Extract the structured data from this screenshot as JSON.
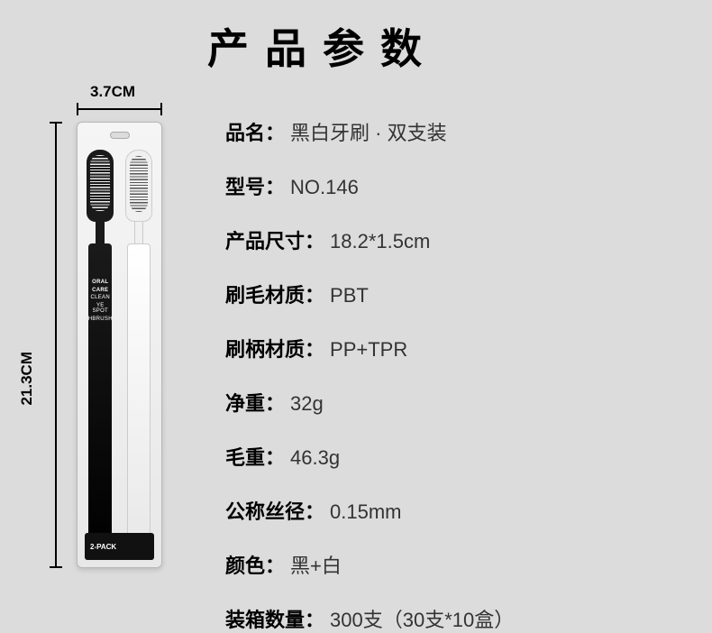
{
  "title": "产品参数",
  "dimensions": {
    "width_label": "3.7CM",
    "height_label": "21.3CM"
  },
  "package_text": {
    "line1": "ORAL",
    "line2": "CARE",
    "line3": "CLEAN",
    "line4": "YE SPOT",
    "line5": "HBRUSH",
    "footer": "2-PACK"
  },
  "specs": [
    {
      "label": "品名",
      "value": "黑白牙刷 · 双支装"
    },
    {
      "label": "型号",
      "value": "NO.146"
    },
    {
      "label": "产品尺寸",
      "value": "18.2*1.5cm"
    },
    {
      "label": "刷毛材质",
      "value": "PBT"
    },
    {
      "label": "刷柄材质",
      "value": "PP+TPR"
    },
    {
      "label": "净重",
      "value": "32g"
    },
    {
      "label": "毛重",
      "value": "46.3g"
    },
    {
      "label": "公称丝径",
      "value": "0.15mm"
    },
    {
      "label": "颜色",
      "value": "黑+白"
    },
    {
      "label": "装箱数量",
      "value": "300支（30支*10盒）"
    }
  ],
  "style": {
    "background_color": "#dcdcdd",
    "title_fontsize": 46,
    "title_letter_spacing": 18,
    "label_fontsize": 22,
    "label_font_weight": 800,
    "value_color": "#333333",
    "row_gap": 28,
    "brush_colors": {
      "black": "#1a1a1a",
      "white": "#f0f0f0"
    }
  }
}
